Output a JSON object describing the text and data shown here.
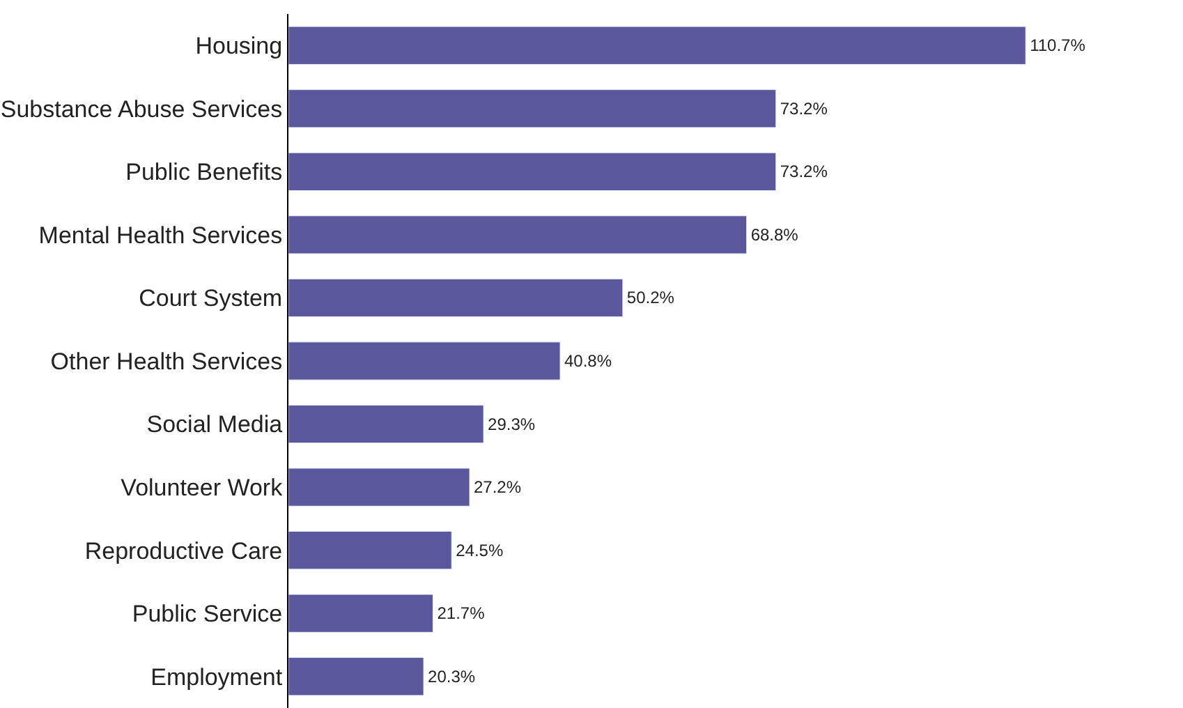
{
  "chart_data": {
    "type": "bar",
    "orientation": "horizontal",
    "categories": [
      "Housing",
      "Substance Abuse Services",
      "Public Benefits",
      "Mental Health Services",
      "Court System",
      "Other Health Services",
      "Social Media",
      "Volunteer Work",
      "Reproductive Care",
      "Public Service",
      "Employment"
    ],
    "values": [
      110.7,
      73.2,
      73.2,
      68.8,
      50.2,
      40.8,
      29.3,
      27.2,
      24.5,
      21.7,
      20.3
    ],
    "value_labels": [
      "110.7%",
      "73.2%",
      "73.2%",
      "68.8%",
      "50.2%",
      "40.8%",
      "29.3%",
      "27.2%",
      "24.5%",
      "21.7%",
      "20.3%"
    ],
    "color": "#5b579c"
  }
}
